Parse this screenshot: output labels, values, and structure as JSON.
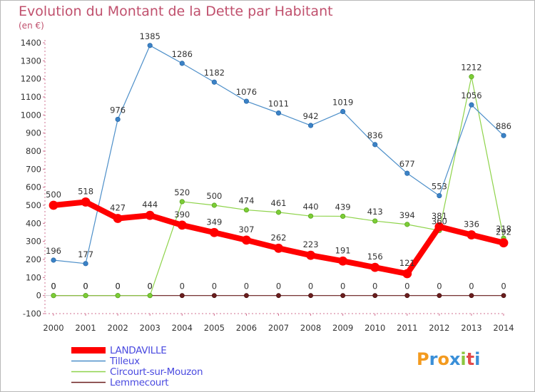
{
  "title": "Evolution du Montant de la Dette par Habitant",
  "unit": "(en €)",
  "logo": "Proxiti",
  "chart_data": {
    "type": "line",
    "x": [
      "2000",
      "2001",
      "2002",
      "2003",
      "2004",
      "2005",
      "2006",
      "2007",
      "2008",
      "2009",
      "2010",
      "2011",
      "2012",
      "2013",
      "2014"
    ],
    "ylim": [
      -100,
      1400
    ],
    "yticks": [
      -100,
      0,
      100,
      200,
      300,
      400,
      500,
      600,
      700,
      800,
      900,
      1000,
      1100,
      1200,
      1300,
      1400
    ],
    "grid": false,
    "legend_position": "bottom-left",
    "series": [
      {
        "name": "LANDAVILLE",
        "color": "#ff0000",
        "values": [
          500,
          518,
          427,
          444,
          390,
          349,
          307,
          262,
          223,
          191,
          156,
          121,
          381,
          336,
          292
        ]
      },
      {
        "name": "Tilleux",
        "color": "#4d8fc9",
        "values": [
          196,
          177,
          976,
          1385,
          1286,
          1182,
          1076,
          1011,
          942,
          1019,
          836,
          677,
          553,
          1056,
          886
        ]
      },
      {
        "name": "Circourt-sur-Mouzon",
        "color": "#8ed34a",
        "values": [
          0,
          0,
          0,
          0,
          520,
          500,
          474,
          461,
          440,
          439,
          413,
          394,
          360,
          1212,
          318
        ]
      },
      {
        "name": "Lemmecourt",
        "color": "#6b1e1e",
        "values": [
          0,
          0,
          0,
          0,
          0,
          0,
          0,
          0,
          0,
          0,
          0,
          0,
          0,
          0,
          0
        ]
      }
    ]
  }
}
